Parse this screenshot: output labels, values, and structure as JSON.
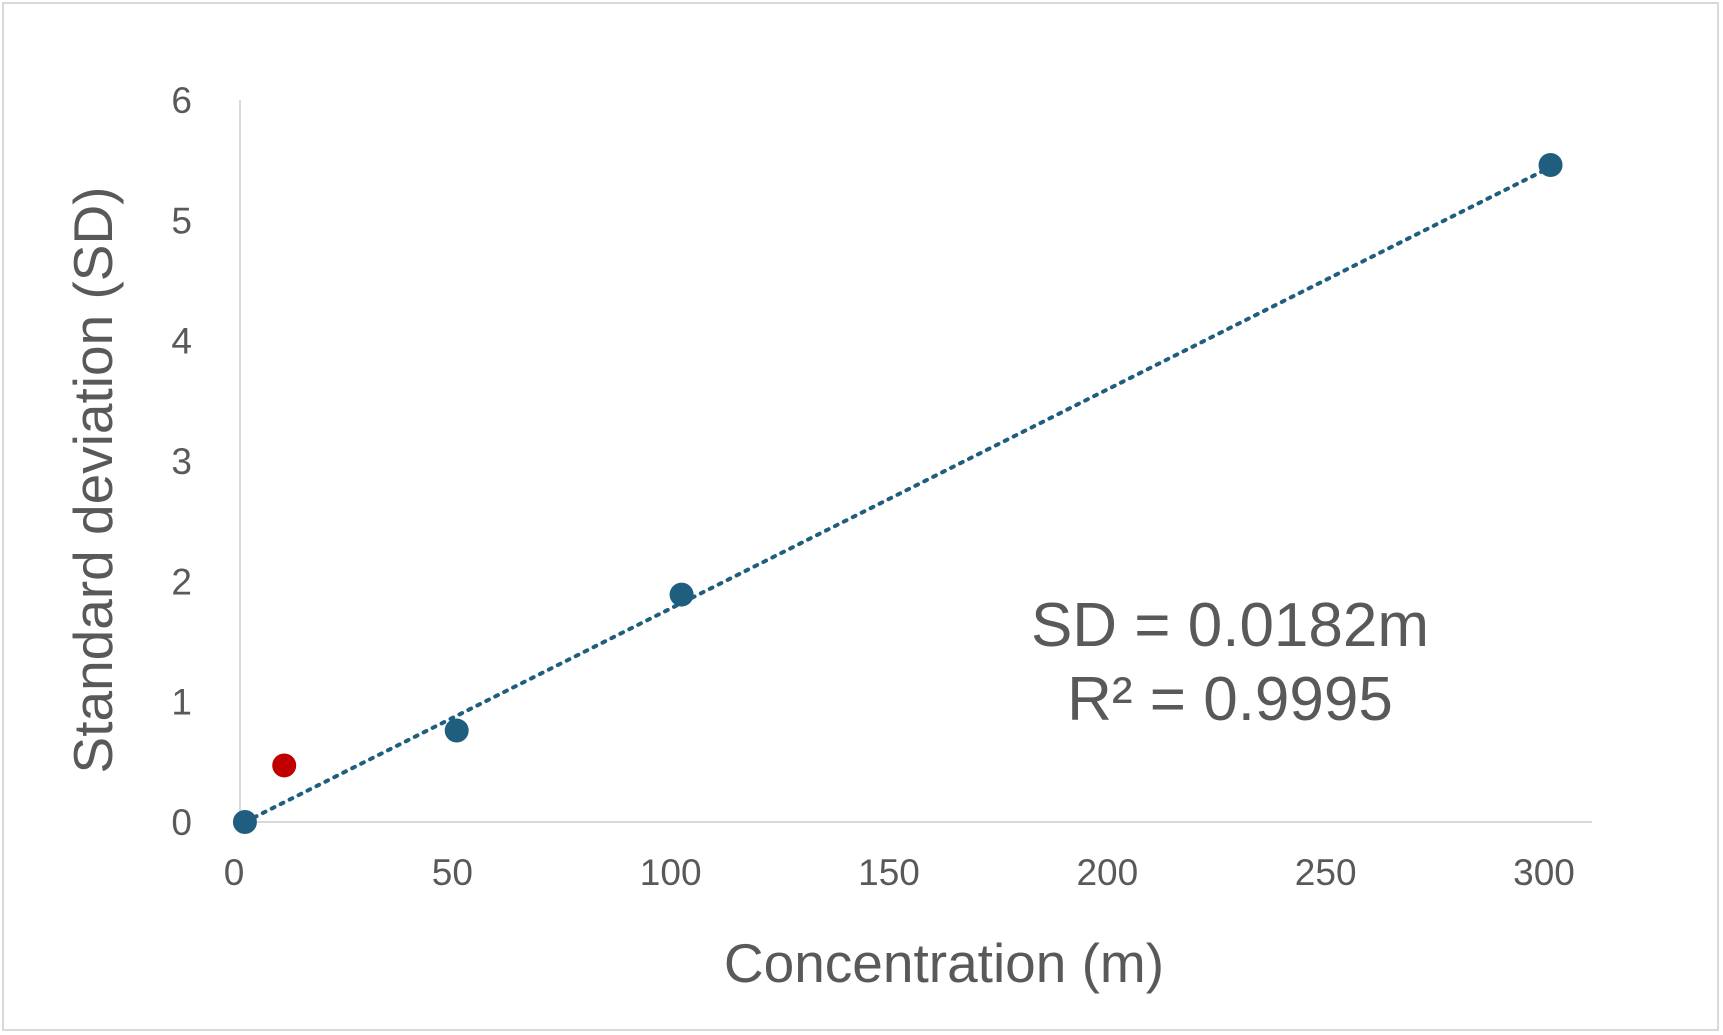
{
  "chart_data": {
    "type": "scatter",
    "title": "",
    "xlabel": "Concentration (m)",
    "ylabel": "Standard deviation (SD)",
    "xlim": [
      0,
      310
    ],
    "ylim": [
      0,
      6
    ],
    "xticks": [
      0,
      50,
      100,
      150,
      200,
      250,
      300
    ],
    "yticks": [
      0,
      1,
      2,
      3,
      4,
      5,
      6
    ],
    "xtick_labels": [
      "0",
      "50",
      "100",
      "150",
      "200",
      "250",
      "300"
    ],
    "ytick_labels": [
      "0",
      "1",
      "2",
      "3",
      "4",
      "5",
      "6"
    ],
    "grid": false,
    "legend": "none",
    "series": [
      {
        "color": "#1f5e7e",
        "points": [
          {
            "x": 2.5,
            "y": 0.0
          },
          {
            "x": 51,
            "y": 0.76
          },
          {
            "x": 102.5,
            "y": 1.89
          },
          {
            "x": 301.5,
            "y": 5.46
          }
        ]
      },
      {
        "color": "#c00000",
        "points": [
          {
            "x": 11.5,
            "y": 0.47
          }
        ]
      }
    ],
    "trendline": {
      "style": "dotted",
      "color": "#1f5e7e",
      "slope": 0.0182,
      "x_start": 2.5,
      "x_end": 301.5
    },
    "annotations": [
      "SD = 0.0182m",
      "R² = 0.9995"
    ]
  }
}
